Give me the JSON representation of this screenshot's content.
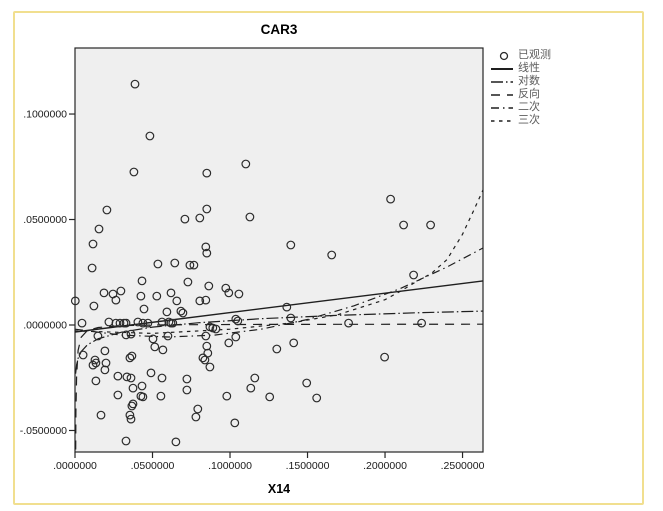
{
  "chart_data": {
    "type": "scatter",
    "title": "CAR3",
    "xlabel": "X14",
    "ylabel": "",
    "xlim": [
      0,
      0.2632
    ],
    "ylim": [
      -0.0602,
      0.1313
    ],
    "grid": false,
    "legend_position": "top-right-outside",
    "x_ticks": {
      "values": [
        0,
        0.05,
        0.1,
        0.15,
        0.2,
        0.25
      ],
      "labels": [
        ".0000000",
        ".0500000",
        ".1000000",
        ".1500000",
        ".2000000",
        ".2500000"
      ]
    },
    "y_ticks": {
      "values": [
        0.1,
        0.05,
        0.0,
        -0.05
      ],
      "labels": [
        ".1000000",
        ".0500000",
        ".0000000",
        "-.0500000"
      ]
    },
    "legend": [
      {
        "label": "已观测",
        "kind": "marker",
        "style": "circle"
      },
      {
        "label": "线性",
        "kind": "line",
        "style": "solid"
      },
      {
        "label": "对数",
        "kind": "line",
        "style": "long-dash-dot"
      },
      {
        "label": "反向",
        "kind": "line",
        "style": "long-dash"
      },
      {
        "label": "二次",
        "kind": "line",
        "style": "dash-dot"
      },
      {
        "label": "三次",
        "kind": "line",
        "style": "short-dash"
      }
    ],
    "points": [
      [
        0.0387,
        0.1142
      ],
      [
        0.0483,
        0.0896
      ],
      [
        0.038,
        0.0725
      ],
      [
        0.085,
        0.072
      ],
      [
        0.1102,
        0.0763
      ],
      [
        0.0206,
        0.0545
      ],
      [
        0.0709,
        0.0502
      ],
      [
        0.0805,
        0.0507
      ],
      [
        0.085,
        0.055
      ],
      [
        0.1128,
        0.0512
      ],
      [
        0.0155,
        0.0455
      ],
      [
        0.0116,
        0.0384
      ],
      [
        0.0844,
        0.037
      ],
      [
        0.2036,
        0.0597
      ],
      [
        0.212,
        0.0474
      ],
      [
        0.2294,
        0.0474
      ],
      [
        0.1392,
        0.0379
      ],
      [
        0.085,
        0.0341
      ],
      [
        0.011,
        0.027
      ],
      [
        0.0535,
        0.0289
      ],
      [
        0.0644,
        0.0294
      ],
      [
        0.0741,
        0.0284
      ],
      [
        0.0767,
        0.0284
      ],
      [
        0.0432,
        0.0209
      ],
      [
        0.0728,
        0.0204
      ],
      [
        0.0863,
        0.0185
      ],
      [
        0.0973,
        0.0175
      ],
      [
        0.0187,
        0.0152
      ],
      [
        0.0245,
        0.0147
      ],
      [
        0.0296,
        0.0161
      ],
      [
        0.0264,
        0.0118
      ],
      [
        0.0425,
        0.0137
      ],
      [
        0.0528,
        0.0137
      ],
      [
        0.0619,
        0.0152
      ],
      [
        0.0657,
        0.0114
      ],
      [
        0.0805,
        0.0114
      ],
      [
        0.0844,
        0.0118
      ],
      [
        0.0992,
        0.0152
      ],
      [
        0.1057,
        0.0147
      ],
      [
        0.0002,
        0.0114
      ],
      [
        0.0122,
        0.009
      ],
      [
        0.0445,
        0.0076
      ],
      [
        0.0593,
        0.0062
      ],
      [
        0.0683,
        0.0066
      ],
      [
        0.0696,
        0.0057
      ],
      [
        0.0045,
        0.0009
      ],
      [
        0.0219,
        0.0014
      ],
      [
        0.0264,
        0.0009
      ],
      [
        0.029,
        0.0009
      ],
      [
        0.0316,
        0.0009
      ],
      [
        0.0329,
        0.0009
      ],
      [
        0.0406,
        0.0014
      ],
      [
        0.0438,
        0.0009
      ],
      [
        0.047,
        0.0009
      ],
      [
        0.0561,
        0.0014
      ],
      [
        0.0606,
        0.0014
      ],
      [
        0.0619,
        0.0009
      ],
      [
        0.0631,
        0.0009
      ],
      [
        0.087,
        -0.0009
      ],
      [
        0.0889,
        -0.0014
      ],
      [
        0.0909,
        -0.0019
      ],
      [
        0.1037,
        0.0028
      ],
      [
        0.105,
        0.0019
      ],
      [
        0.0148,
        -0.0052
      ],
      [
        0.0329,
        -0.0047
      ],
      [
        0.0361,
        -0.0043
      ],
      [
        0.0503,
        -0.0066
      ],
      [
        0.0599,
        -0.0052
      ],
      [
        0.0515,
        -0.0104
      ],
      [
        0.0567,
        -0.0118
      ],
      [
        0.0844,
        -0.0052
      ],
      [
        0.085,
        -0.01
      ],
      [
        0.0857,
        -0.0133
      ],
      [
        0.0992,
        -0.0085
      ],
      [
        0.1037,
        -0.0057
      ],
      [
        0.0052,
        -0.0142
      ],
      [
        0.0193,
        -0.0123
      ],
      [
        0.0129,
        -0.0166
      ],
      [
        0.0135,
        -0.018
      ],
      [
        0.0116,
        -0.019
      ],
      [
        0.02,
        -0.018
      ],
      [
        0.0193,
        -0.0213
      ],
      [
        0.0354,
        -0.0156
      ],
      [
        0.0367,
        -0.0147
      ],
      [
        0.0825,
        -0.0156
      ],
      [
        0.0838,
        -0.0166
      ],
      [
        0.087,
        -0.0199
      ],
      [
        0.0277,
        -0.0242
      ],
      [
        0.0335,
        -0.0246
      ],
      [
        0.0361,
        -0.0251
      ],
      [
        0.049,
        -0.0227
      ],
      [
        0.0561,
        -0.0251
      ],
      [
        0.0135,
        -0.0265
      ],
      [
        0.0432,
        -0.0289
      ],
      [
        0.0374,
        -0.0299
      ],
      [
        0.0722,
        -0.0256
      ],
      [
        0.116,
        -0.0251
      ],
      [
        0.1134,
        -0.0299
      ],
      [
        0.0277,
        -0.0332
      ],
      [
        0.0425,
        -0.0337
      ],
      [
        0.0438,
        -0.0341
      ],
      [
        0.0554,
        -0.0337
      ],
      [
        0.0374,
        -0.0374
      ],
      [
        0.0367,
        -0.0384
      ],
      [
        0.0722,
        -0.0308
      ],
      [
        0.0979,
        -0.0337
      ],
      [
        0.1256,
        -0.0341
      ],
      [
        0.0168,
        -0.0427
      ],
      [
        0.0354,
        -0.0427
      ],
      [
        0.0361,
        -0.0446
      ],
      [
        0.0792,
        -0.0398
      ],
      [
        0.078,
        -0.0436
      ],
      [
        0.1031,
        -0.0464
      ],
      [
        0.0329,
        -0.055
      ],
      [
        0.0651,
        -0.0554
      ],
      [
        0.1302,
        -0.0114
      ],
      [
        0.1656,
        0.0332
      ],
      [
        0.1366,
        0.0085
      ],
      [
        0.1392,
        0.0033
      ],
      [
        0.1765,
        0.0009
      ],
      [
        0.2236,
        0.0009
      ],
      [
        0.2184,
        0.0237
      ],
      [
        0.1411,
        -0.0085
      ],
      [
        0.1997,
        -0.0152
      ],
      [
        0.1495,
        -0.0275
      ],
      [
        0.1559,
        -0.0346
      ]
    ],
    "series": [
      {
        "name": "线性",
        "style": "solid",
        "points": [
          [
            0,
            -0.0033
          ],
          [
            0.2632,
            0.0209
          ]
        ]
      },
      {
        "name": "对数",
        "style": "long-dash-dot",
        "points": [
          [
            0.0004,
            -0.0231
          ],
          [
            0.001,
            -0.0189
          ],
          [
            0.002,
            -0.0158
          ],
          [
            0.004,
            -0.0126
          ],
          [
            0.008,
            -0.0094
          ],
          [
            0.015,
            -0.0065
          ],
          [
            0.03,
            -0.0034
          ],
          [
            0.05,
            -0.001
          ],
          [
            0.08,
            0.0011
          ],
          [
            0.12,
            0.003
          ],
          [
            0.17,
            0.0046
          ],
          [
            0.22,
            0.0058
          ],
          [
            0.2632,
            0.0066
          ]
        ]
      },
      {
        "name": "反向",
        "style": "long-dash",
        "points": [
          [
            0.00042,
            -0.059
          ],
          [
            0.0006,
            -0.0412
          ],
          [
            0.001,
            -0.0245
          ],
          [
            0.002,
            -0.012
          ],
          [
            0.004,
            -0.0058
          ],
          [
            0.008,
            -0.0026
          ],
          [
            0.015,
            -0.0012
          ],
          [
            0.03,
            -0.0003
          ],
          [
            0.06,
            0.0001
          ],
          [
            0.12,
            0.0003
          ],
          [
            0.2632,
            0.0004
          ]
        ]
      },
      {
        "name": "二次",
        "style": "dash-dot",
        "points": [
          [
            0,
            -0.002
          ],
          [
            0.03,
            -0.0048
          ],
          [
            0.06,
            -0.0057
          ],
          [
            0.09,
            -0.0048
          ],
          [
            0.12,
            -0.002
          ],
          [
            0.15,
            0.0026
          ],
          [
            0.18,
            0.0091
          ],
          [
            0.21,
            0.0173
          ],
          [
            0.24,
            0.0275
          ],
          [
            0.2632,
            0.0365
          ]
        ]
      },
      {
        "name": "三次",
        "style": "short-dash",
        "points": [
          [
            0,
            -0.0028
          ],
          [
            0.05,
            -0.004
          ],
          [
            0.1,
            -0.002
          ],
          [
            0.14,
            0.001
          ],
          [
            0.17,
            0.005
          ],
          [
            0.2,
            0.012
          ],
          [
            0.21,
            0.016
          ],
          [
            0.22,
            0.0205
          ],
          [
            0.23,
            0.0245
          ],
          [
            0.24,
            0.031
          ],
          [
            0.25,
            0.043
          ],
          [
            0.257,
            0.054
          ],
          [
            0.2632,
            0.064
          ]
        ]
      }
    ],
    "colors": {
      "frame_border": "#f1df8f",
      "plot_background": "#efefef",
      "plot_border": "#262626",
      "line": "#1f1f1f",
      "marker": "#2b2b2b",
      "tick_text": "#1a1a1a",
      "legend_text": "#5c5c5c"
    }
  }
}
